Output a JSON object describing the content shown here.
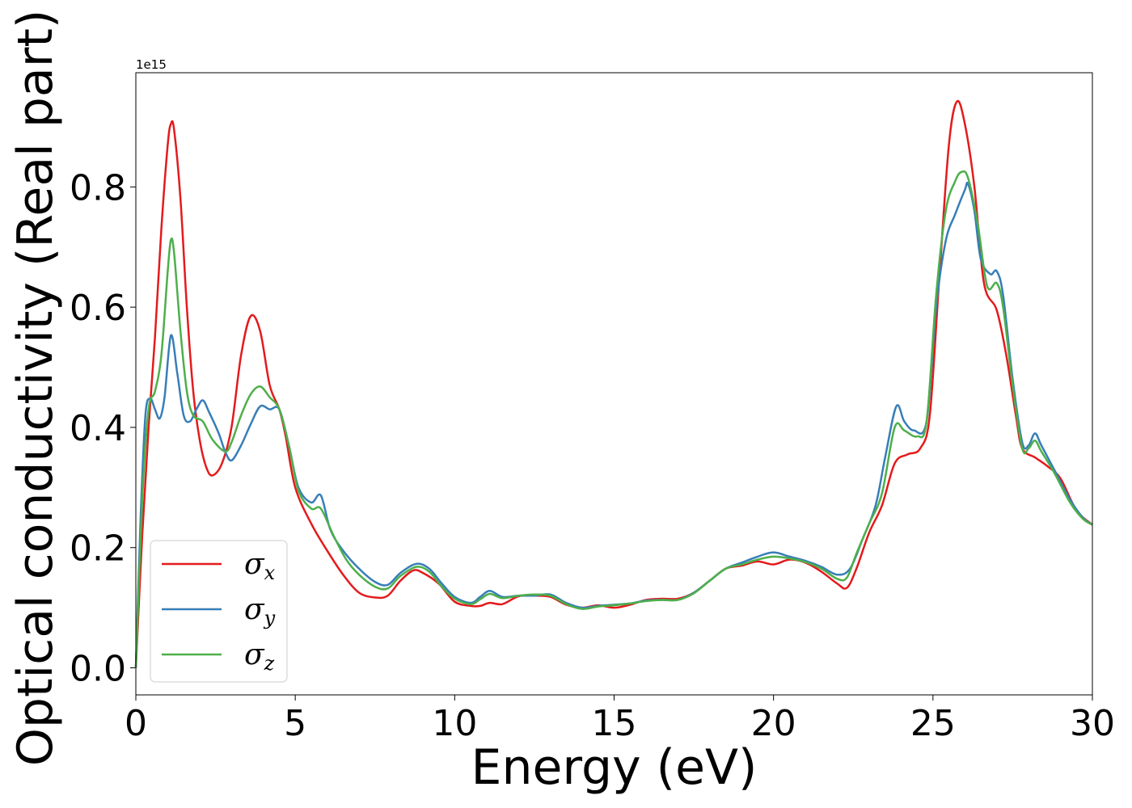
{
  "chart_data": {
    "type": "line",
    "title": "",
    "xlabel": "Energy (eV)",
    "ylabel": "Optical conductivity (Real part)",
    "offset_text": "1e15",
    "xlim": [
      0,
      30
    ],
    "ylim": [
      -0.045,
      0.99
    ],
    "y_scale_factor": 1000000000000000.0,
    "xticks": [
      0,
      5,
      10,
      15,
      20,
      25,
      30
    ],
    "xtick_labels": [
      "0",
      "5",
      "10",
      "15",
      "20",
      "25",
      "30"
    ],
    "yticks": [
      0.0,
      0.2,
      0.4,
      0.6,
      0.8
    ],
    "ytick_labels": [
      "0.0",
      "0.2",
      "0.4",
      "0.6",
      "0.8"
    ],
    "grid": false,
    "legend_position": "lower-left",
    "series": [
      {
        "name": "σx",
        "symbol": "σ",
        "subscript": "x",
        "color": "#e41a1c",
        "points": [
          [
            0,
            0.0
          ],
          [
            0.2,
            0.22
          ],
          [
            0.4,
            0.4
          ],
          [
            0.6,
            0.55
          ],
          [
            0.8,
            0.73
          ],
          [
            1.0,
            0.87
          ],
          [
            1.1,
            0.905
          ],
          [
            1.2,
            0.895
          ],
          [
            1.4,
            0.78
          ],
          [
            1.6,
            0.6
          ],
          [
            1.8,
            0.46
          ],
          [
            2.0,
            0.38
          ],
          [
            2.2,
            0.335
          ],
          [
            2.4,
            0.32
          ],
          [
            2.7,
            0.34
          ],
          [
            3.0,
            0.4
          ],
          [
            3.3,
            0.52
          ],
          [
            3.6,
            0.585
          ],
          [
            3.9,
            0.56
          ],
          [
            4.2,
            0.47
          ],
          [
            4.5,
            0.43
          ],
          [
            4.7,
            0.385
          ],
          [
            5.0,
            0.3
          ],
          [
            5.5,
            0.24
          ],
          [
            6.0,
            0.195
          ],
          [
            6.5,
            0.155
          ],
          [
            7.0,
            0.125
          ],
          [
            7.5,
            0.117
          ],
          [
            7.9,
            0.12
          ],
          [
            8.3,
            0.145
          ],
          [
            8.7,
            0.162
          ],
          [
            9.0,
            0.158
          ],
          [
            9.5,
            0.14
          ],
          [
            10.0,
            0.11
          ],
          [
            10.5,
            0.103
          ],
          [
            10.8,
            0.103
          ],
          [
            11.1,
            0.108
          ],
          [
            11.5,
            0.106
          ],
          [
            12.0,
            0.119
          ],
          [
            12.5,
            0.12
          ],
          [
            13.0,
            0.118
          ],
          [
            13.5,
            0.105
          ],
          [
            14.0,
            0.1
          ],
          [
            14.5,
            0.104
          ],
          [
            15.0,
            0.1
          ],
          [
            15.5,
            0.105
          ],
          [
            16.0,
            0.113
          ],
          [
            16.5,
            0.115
          ],
          [
            17.0,
            0.115
          ],
          [
            17.5,
            0.125
          ],
          [
            18.0,
            0.145
          ],
          [
            18.5,
            0.165
          ],
          [
            19.0,
            0.17
          ],
          [
            19.5,
            0.177
          ],
          [
            20.0,
            0.172
          ],
          [
            20.5,
            0.18
          ],
          [
            21.0,
            0.175
          ],
          [
            21.5,
            0.16
          ],
          [
            22.0,
            0.14
          ],
          [
            22.3,
            0.133
          ],
          [
            22.6,
            0.165
          ],
          [
            23.0,
            0.225
          ],
          [
            23.4,
            0.27
          ],
          [
            23.8,
            0.34
          ],
          [
            24.2,
            0.355
          ],
          [
            24.6,
            0.365
          ],
          [
            24.9,
            0.42
          ],
          [
            25.2,
            0.65
          ],
          [
            25.5,
            0.87
          ],
          [
            25.75,
            0.942
          ],
          [
            26.0,
            0.905
          ],
          [
            26.3,
            0.8
          ],
          [
            26.6,
            0.64
          ],
          [
            27.0,
            0.595
          ],
          [
            27.3,
            0.52
          ],
          [
            27.6,
            0.42
          ],
          [
            27.8,
            0.365
          ],
          [
            28.2,
            0.35
          ],
          [
            28.6,
            0.335
          ],
          [
            29.0,
            0.315
          ],
          [
            29.5,
            0.262
          ],
          [
            30.0,
            0.238
          ]
        ]
      },
      {
        "name": "σy",
        "symbol": "σ",
        "subscript": "y",
        "color": "#377eb8",
        "points": [
          [
            0,
            0.0
          ],
          [
            0.15,
            0.25
          ],
          [
            0.3,
            0.42
          ],
          [
            0.45,
            0.448
          ],
          [
            0.6,
            0.43
          ],
          [
            0.75,
            0.415
          ],
          [
            0.9,
            0.45
          ],
          [
            1.1,
            0.553
          ],
          [
            1.3,
            0.49
          ],
          [
            1.5,
            0.42
          ],
          [
            1.7,
            0.41
          ],
          [
            1.9,
            0.43
          ],
          [
            2.1,
            0.445
          ],
          [
            2.3,
            0.425
          ],
          [
            2.6,
            0.39
          ],
          [
            2.8,
            0.36
          ],
          [
            3.0,
            0.345
          ],
          [
            3.3,
            0.37
          ],
          [
            3.6,
            0.405
          ],
          [
            3.9,
            0.435
          ],
          [
            4.2,
            0.43
          ],
          [
            4.5,
            0.43
          ],
          [
            4.8,
            0.37
          ],
          [
            5.1,
            0.3
          ],
          [
            5.5,
            0.275
          ],
          [
            5.8,
            0.287
          ],
          [
            6.1,
            0.23
          ],
          [
            6.5,
            0.195
          ],
          [
            7.0,
            0.165
          ],
          [
            7.5,
            0.143
          ],
          [
            7.9,
            0.138
          ],
          [
            8.3,
            0.158
          ],
          [
            8.8,
            0.173
          ],
          [
            9.2,
            0.165
          ],
          [
            9.6,
            0.14
          ],
          [
            10.0,
            0.118
          ],
          [
            10.5,
            0.108
          ],
          [
            10.8,
            0.118
          ],
          [
            11.1,
            0.128
          ],
          [
            11.5,
            0.118
          ],
          [
            12.0,
            0.12
          ],
          [
            12.5,
            0.12
          ],
          [
            13.0,
            0.122
          ],
          [
            13.5,
            0.108
          ],
          [
            14.0,
            0.1
          ],
          [
            14.5,
            0.103
          ],
          [
            15.0,
            0.105
          ],
          [
            15.5,
            0.107
          ],
          [
            16.0,
            0.112
          ],
          [
            16.5,
            0.113
          ],
          [
            17.0,
            0.113
          ],
          [
            17.5,
            0.125
          ],
          [
            18.0,
            0.145
          ],
          [
            18.5,
            0.165
          ],
          [
            19.0,
            0.175
          ],
          [
            19.5,
            0.185
          ],
          [
            20.0,
            0.192
          ],
          [
            20.5,
            0.185
          ],
          [
            21.0,
            0.178
          ],
          [
            21.5,
            0.168
          ],
          [
            22.0,
            0.155
          ],
          [
            22.4,
            0.165
          ],
          [
            22.8,
            0.215
          ],
          [
            23.2,
            0.27
          ],
          [
            23.5,
            0.35
          ],
          [
            23.85,
            0.435
          ],
          [
            24.1,
            0.41
          ],
          [
            24.4,
            0.395
          ],
          [
            24.8,
            0.41
          ],
          [
            25.1,
            0.6
          ],
          [
            25.4,
            0.71
          ],
          [
            25.7,
            0.755
          ],
          [
            26.0,
            0.795
          ],
          [
            26.1,
            0.805
          ],
          [
            26.3,
            0.76
          ],
          [
            26.5,
            0.68
          ],
          [
            26.8,
            0.655
          ],
          [
            27.0,
            0.66
          ],
          [
            27.2,
            0.62
          ],
          [
            27.5,
            0.48
          ],
          [
            27.8,
            0.375
          ],
          [
            28.0,
            0.37
          ],
          [
            28.2,
            0.39
          ],
          [
            28.4,
            0.37
          ],
          [
            28.8,
            0.33
          ],
          [
            29.3,
            0.28
          ],
          [
            29.7,
            0.25
          ],
          [
            30.0,
            0.238
          ]
        ]
      },
      {
        "name": "σz",
        "symbol": "σ",
        "subscript": "z",
        "color": "#4daf4a",
        "points": [
          [
            0,
            0.0
          ],
          [
            0.2,
            0.28
          ],
          [
            0.4,
            0.43
          ],
          [
            0.6,
            0.46
          ],
          [
            0.8,
            0.52
          ],
          [
            1.0,
            0.66
          ],
          [
            1.1,
            0.712
          ],
          [
            1.2,
            0.69
          ],
          [
            1.4,
            0.56
          ],
          [
            1.6,
            0.46
          ],
          [
            1.8,
            0.42
          ],
          [
            2.1,
            0.41
          ],
          [
            2.4,
            0.38
          ],
          [
            2.8,
            0.36
          ],
          [
            3.0,
            0.375
          ],
          [
            3.3,
            0.42
          ],
          [
            3.6,
            0.455
          ],
          [
            3.9,
            0.468
          ],
          [
            4.2,
            0.45
          ],
          [
            4.5,
            0.43
          ],
          [
            4.8,
            0.37
          ],
          [
            5.1,
            0.295
          ],
          [
            5.5,
            0.265
          ],
          [
            5.8,
            0.265
          ],
          [
            6.2,
            0.22
          ],
          [
            6.6,
            0.18
          ],
          [
            7.0,
            0.155
          ],
          [
            7.5,
            0.135
          ],
          [
            7.9,
            0.132
          ],
          [
            8.3,
            0.153
          ],
          [
            8.8,
            0.168
          ],
          [
            9.2,
            0.16
          ],
          [
            9.6,
            0.135
          ],
          [
            10.0,
            0.115
          ],
          [
            10.5,
            0.106
          ],
          [
            10.8,
            0.114
          ],
          [
            11.1,
            0.123
          ],
          [
            11.5,
            0.116
          ],
          [
            12.0,
            0.12
          ],
          [
            12.5,
            0.122
          ],
          [
            13.0,
            0.12
          ],
          [
            13.5,
            0.106
          ],
          [
            14.0,
            0.098
          ],
          [
            14.5,
            0.102
          ],
          [
            15.0,
            0.104
          ],
          [
            15.5,
            0.107
          ],
          [
            16.0,
            0.111
          ],
          [
            16.5,
            0.113
          ],
          [
            17.0,
            0.113
          ],
          [
            17.5,
            0.124
          ],
          [
            18.0,
            0.145
          ],
          [
            18.5,
            0.165
          ],
          [
            19.0,
            0.172
          ],
          [
            19.5,
            0.18
          ],
          [
            20.0,
            0.185
          ],
          [
            20.5,
            0.182
          ],
          [
            21.0,
            0.176
          ],
          [
            21.5,
            0.165
          ],
          [
            22.0,
            0.148
          ],
          [
            22.3,
            0.15
          ],
          [
            22.6,
            0.19
          ],
          [
            23.0,
            0.24
          ],
          [
            23.4,
            0.29
          ],
          [
            23.8,
            0.4
          ],
          [
            24.1,
            0.395
          ],
          [
            24.5,
            0.385
          ],
          [
            24.8,
            0.41
          ],
          [
            25.1,
            0.62
          ],
          [
            25.4,
            0.76
          ],
          [
            25.7,
            0.81
          ],
          [
            25.9,
            0.825
          ],
          [
            26.1,
            0.815
          ],
          [
            26.4,
            0.74
          ],
          [
            26.7,
            0.635
          ],
          [
            27.0,
            0.64
          ],
          [
            27.2,
            0.6
          ],
          [
            27.5,
            0.47
          ],
          [
            27.8,
            0.365
          ],
          [
            28.0,
            0.365
          ],
          [
            28.2,
            0.378
          ],
          [
            28.4,
            0.36
          ],
          [
            28.8,
            0.325
          ],
          [
            29.3,
            0.275
          ],
          [
            29.7,
            0.248
          ],
          [
            30.0,
            0.238
          ]
        ]
      }
    ]
  }
}
